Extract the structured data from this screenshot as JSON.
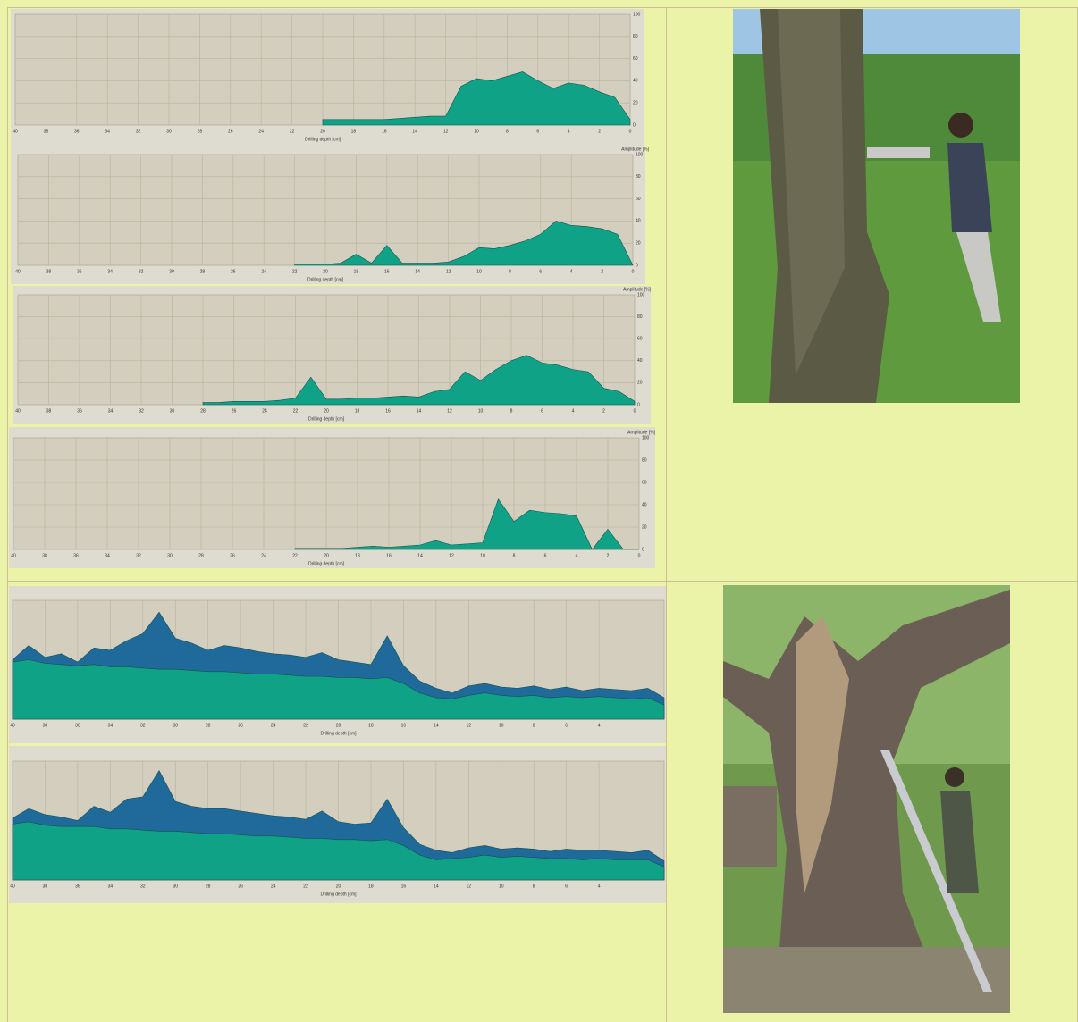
{
  "chart_data": [
    {
      "type": "area",
      "xlabel": "Drilling depth [cm]",
      "x": [
        40,
        39,
        38,
        37,
        36,
        35,
        34,
        33,
        32,
        31,
        30,
        29,
        28,
        27,
        26,
        25,
        24,
        23,
        22,
        21,
        20,
        19,
        18,
        17,
        16,
        15,
        14,
        13,
        12,
        11,
        10,
        9,
        8,
        7,
        6,
        5,
        4,
        3,
        2,
        1,
        0
      ],
      "xlim": [
        40,
        0
      ],
      "xticks": [
        40,
        38,
        36,
        34,
        32,
        30,
        28,
        26,
        24,
        22,
        20,
        18,
        16,
        14,
        12,
        10,
        8,
        6,
        4,
        2,
        0
      ],
      "ylim": [
        0,
        100
      ],
      "yticks": [
        0,
        20,
        40,
        60,
        80,
        100
      ],
      "series": [
        {
          "color": "#10a287",
          "values": [
            null,
            null,
            null,
            null,
            null,
            null,
            null,
            null,
            null,
            null,
            null,
            null,
            null,
            null,
            null,
            null,
            null,
            null,
            null,
            null,
            5,
            5,
            5,
            5,
            5,
            6,
            7,
            8,
            8,
            35,
            42,
            40,
            44,
            48,
            40,
            33,
            38,
            36,
            30,
            25,
            5
          ]
        }
      ]
    },
    {
      "type": "area",
      "xlabel": "Drilling depth [cm]",
      "ylabel": "Amplitude [%]",
      "x": [
        40,
        39,
        38,
        37,
        36,
        35,
        34,
        33,
        32,
        31,
        30,
        29,
        28,
        27,
        26,
        25,
        24,
        23,
        22,
        21,
        20,
        19,
        18,
        17,
        16,
        15,
        14,
        13,
        12,
        11,
        10,
        9,
        8,
        7,
        6,
        5,
        4,
        3,
        2,
        1,
        0
      ],
      "xlim": [
        40,
        0
      ],
      "xticks": [
        40,
        38,
        36,
        34,
        32,
        30,
        28,
        26,
        24,
        22,
        20,
        18,
        16,
        14,
        12,
        10,
        8,
        6,
        4,
        2,
        0
      ],
      "ylim": [
        0,
        100
      ],
      "yticks": [
        0,
        20,
        40,
        60,
        80,
        100
      ],
      "series": [
        {
          "color": "#10a287",
          "values": [
            null,
            null,
            null,
            null,
            null,
            null,
            null,
            null,
            null,
            null,
            null,
            null,
            null,
            null,
            null,
            null,
            null,
            null,
            1,
            1,
            1,
            2,
            10,
            2,
            18,
            2,
            2,
            2,
            3,
            8,
            16,
            15,
            18,
            22,
            28,
            40,
            36,
            35,
            33,
            28,
            0
          ]
        }
      ]
    },
    {
      "type": "area",
      "xlabel": "Drilling depth [cm]",
      "ylabel": "Amplitude [%]",
      "x": [
        40,
        39,
        38,
        37,
        36,
        35,
        34,
        33,
        32,
        31,
        30,
        29,
        28,
        27,
        26,
        25,
        24,
        23,
        22,
        21,
        20,
        19,
        18,
        17,
        16,
        15,
        14,
        13,
        12,
        11,
        10,
        9,
        8,
        7,
        6,
        5,
        4,
        3,
        2,
        1,
        0
      ],
      "xlim": [
        40,
        0
      ],
      "xticks": [
        40,
        38,
        36,
        34,
        32,
        30,
        28,
        26,
        24,
        22,
        20,
        18,
        16,
        14,
        12,
        10,
        8,
        6,
        4,
        2,
        0
      ],
      "ylim": [
        0,
        100
      ],
      "yticks": [
        0,
        20,
        40,
        60,
        80,
        100
      ],
      "series": [
        {
          "color": "#10a287",
          "values": [
            null,
            null,
            null,
            null,
            null,
            null,
            null,
            null,
            null,
            null,
            null,
            null,
            2,
            2,
            3,
            3,
            3,
            4,
            6,
            25,
            5,
            5,
            6,
            6,
            7,
            8,
            7,
            12,
            14,
            30,
            22,
            32,
            40,
            45,
            38,
            36,
            32,
            30,
            15,
            12,
            3
          ]
        }
      ]
    },
    {
      "type": "area",
      "xlabel": "Drilling depth [cm]",
      "ylabel": "Amplitude [%]",
      "x": [
        40,
        39,
        38,
        37,
        36,
        35,
        34,
        33,
        32,
        31,
        30,
        29,
        28,
        27,
        26,
        25,
        24,
        23,
        22,
        21,
        20,
        19,
        18,
        17,
        16,
        15,
        14,
        13,
        12,
        11,
        10,
        9,
        8,
        7,
        6,
        5,
        4,
        3,
        2,
        1,
        0
      ],
      "xlim": [
        40,
        0
      ],
      "xticks": [
        40,
        38,
        36,
        34,
        32,
        30,
        28,
        26,
        24,
        22,
        20,
        18,
        16,
        14,
        12,
        10,
        8,
        6,
        4,
        2,
        0
      ],
      "ylim": [
        0,
        100
      ],
      "yticks": [
        0,
        20,
        40,
        60,
        80,
        100
      ],
      "series": [
        {
          "color": "#10a287",
          "values": [
            null,
            null,
            null,
            null,
            null,
            null,
            null,
            null,
            null,
            null,
            null,
            null,
            null,
            null,
            null,
            null,
            null,
            null,
            1,
            1,
            1,
            1,
            2,
            3,
            2,
            3,
            4,
            8,
            4,
            5,
            6,
            45,
            25,
            35,
            33,
            32,
            30,
            0,
            18,
            0,
            0
          ]
        }
      ]
    },
    {
      "type": "area",
      "xlabel": "Drilling depth [cm]",
      "x": [
        40,
        39,
        38,
        37,
        36,
        35,
        34,
        33,
        32,
        31,
        30,
        29,
        28,
        27,
        26,
        25,
        24,
        23,
        22,
        21,
        20,
        19,
        18,
        17,
        16,
        15,
        14,
        13,
        12,
        11,
        10,
        9,
        8,
        7,
        6,
        5,
        4,
        3,
        2,
        1,
        0
      ],
      "xlim": [
        40,
        0
      ],
      "xticks": [
        40,
        38,
        36,
        34,
        32,
        30,
        28,
        26,
        24,
        22,
        20,
        18,
        16,
        14,
        12,
        10,
        8,
        6,
        4
      ],
      "ylim": [
        0,
        100
      ],
      "series": [
        {
          "color": "#1f6a9a",
          "values": [
            50,
            62,
            52,
            55,
            48,
            60,
            58,
            66,
            72,
            90,
            68,
            64,
            58,
            62,
            60,
            57,
            55,
            54,
            52,
            56,
            50,
            48,
            46,
            70,
            45,
            32,
            26,
            22,
            28,
            30,
            27,
            26,
            28,
            25,
            27,
            24,
            26,
            25,
            24,
            26,
            18
          ]
        },
        {
          "color": "#10a287",
          "values": [
            48,
            50,
            47,
            46,
            45,
            46,
            44,
            44,
            43,
            42,
            42,
            41,
            40,
            40,
            39,
            38,
            38,
            37,
            36,
            36,
            35,
            35,
            34,
            35,
            30,
            22,
            18,
            17,
            20,
            22,
            20,
            19,
            20,
            18,
            19,
            18,
            19,
            18,
            17,
            18,
            12
          ]
        }
      ]
    },
    {
      "type": "area",
      "xlabel": "Drilling depth [cm]",
      "x": [
        40,
        39,
        38,
        37,
        36,
        35,
        34,
        33,
        32,
        31,
        30,
        29,
        28,
        27,
        26,
        25,
        24,
        23,
        22,
        21,
        20,
        19,
        18,
        17,
        16,
        15,
        14,
        13,
        12,
        11,
        10,
        9,
        8,
        7,
        6,
        5,
        4,
        3,
        2,
        1,
        0
      ],
      "xlim": [
        40,
        0
      ],
      "xticks": [
        40,
        38,
        36,
        34,
        32,
        30,
        28,
        26,
        24,
        22,
        20,
        18,
        16,
        14,
        12,
        10,
        8,
        6,
        4
      ],
      "ylim": [
        0,
        100
      ],
      "series": [
        {
          "color": "#1f6a9a",
          "values": [
            52,
            60,
            55,
            53,
            50,
            62,
            57,
            68,
            70,
            92,
            66,
            62,
            60,
            60,
            58,
            56,
            54,
            53,
            51,
            58,
            49,
            47,
            48,
            68,
            44,
            30,
            25,
            23,
            27,
            29,
            26,
            27,
            26,
            24,
            26,
            25,
            25,
            24,
            23,
            25,
            16
          ]
        },
        {
          "color": "#10a287",
          "values": [
            47,
            49,
            46,
            45,
            45,
            45,
            43,
            43,
            42,
            41,
            41,
            40,
            39,
            39,
            38,
            37,
            37,
            36,
            35,
            35,
            34,
            34,
            33,
            34,
            29,
            21,
            17,
            18,
            19,
            21,
            19,
            20,
            19,
            18,
            18,
            17,
            18,
            17,
            17,
            17,
            11
          ]
        }
      ]
    }
  ]
}
